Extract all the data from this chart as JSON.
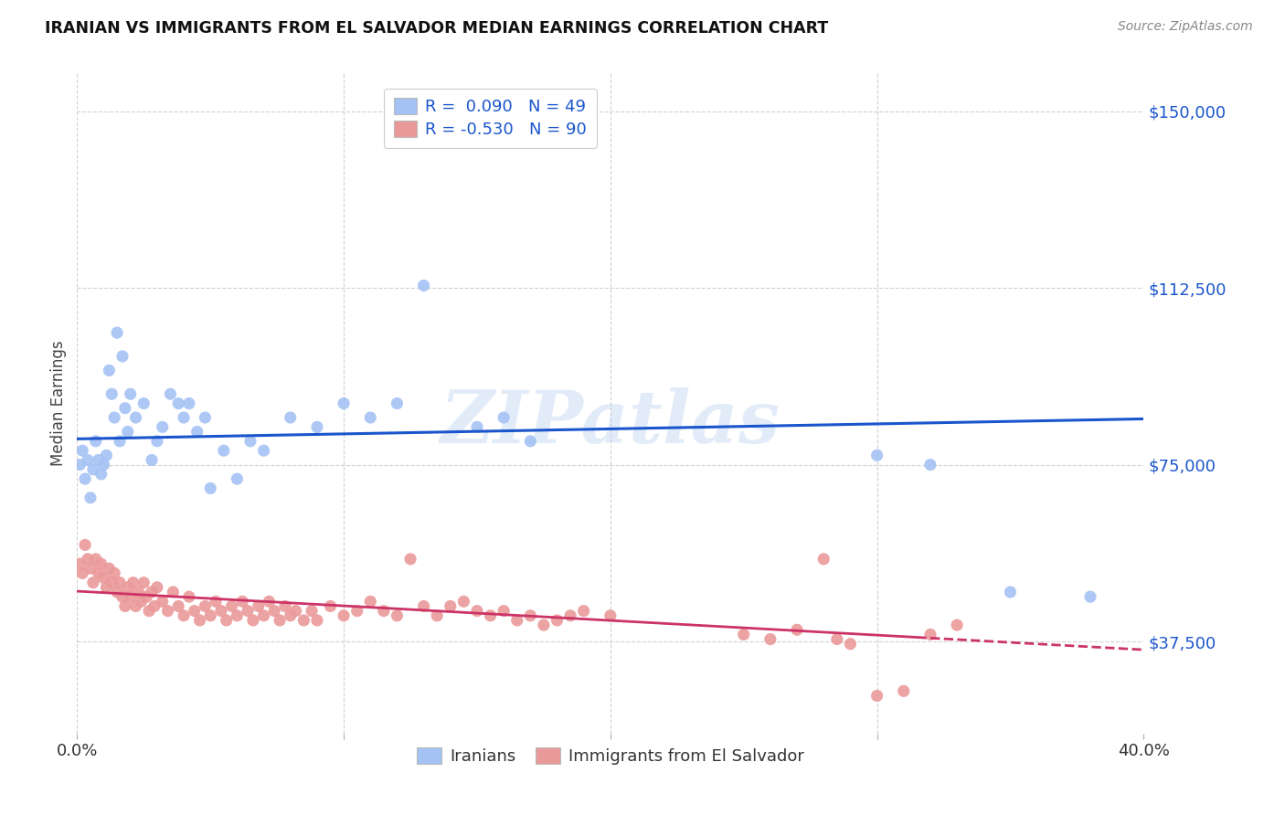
{
  "title": "IRANIAN VS IMMIGRANTS FROM EL SALVADOR MEDIAN EARNINGS CORRELATION CHART",
  "source": "Source: ZipAtlas.com",
  "ylabel": "Median Earnings",
  "xmin": 0.0,
  "xmax": 0.4,
  "ymin": 18000,
  "ymax": 158000,
  "blue_R": 0.09,
  "blue_N": 49,
  "pink_R": -0.53,
  "pink_N": 90,
  "blue_color": "#a4c2f4",
  "pink_color": "#ea9999",
  "blue_line_color": "#1a55cc",
  "pink_line_color": "#cc3366",
  "blue_scatter_x": [
    0.001,
    0.002,
    0.003,
    0.004,
    0.005,
    0.006,
    0.007,
    0.008,
    0.009,
    0.01,
    0.011,
    0.012,
    0.013,
    0.014,
    0.015,
    0.016,
    0.017,
    0.018,
    0.019,
    0.02,
    0.022,
    0.025,
    0.028,
    0.03,
    0.032,
    0.035,
    0.038,
    0.04,
    0.042,
    0.045,
    0.048,
    0.05,
    0.055,
    0.06,
    0.065,
    0.07,
    0.08,
    0.09,
    0.1,
    0.11,
    0.12,
    0.13,
    0.15,
    0.16,
    0.17,
    0.3,
    0.32,
    0.35,
    0.38
  ],
  "blue_scatter_y": [
    75000,
    78000,
    72000,
    76000,
    68000,
    74000,
    80000,
    76000,
    73000,
    75000,
    77000,
    95000,
    90000,
    85000,
    103000,
    80000,
    98000,
    87000,
    82000,
    90000,
    85000,
    88000,
    76000,
    80000,
    83000,
    90000,
    88000,
    85000,
    88000,
    82000,
    85000,
    70000,
    78000,
    72000,
    80000,
    78000,
    85000,
    83000,
    88000,
    85000,
    88000,
    113000,
    83000,
    85000,
    80000,
    77000,
    75000,
    48000,
    47000
  ],
  "pink_scatter_x": [
    0.001,
    0.002,
    0.003,
    0.004,
    0.005,
    0.006,
    0.007,
    0.008,
    0.009,
    0.01,
    0.011,
    0.012,
    0.013,
    0.014,
    0.015,
    0.016,
    0.017,
    0.018,
    0.019,
    0.02,
    0.021,
    0.022,
    0.023,
    0.024,
    0.025,
    0.026,
    0.027,
    0.028,
    0.029,
    0.03,
    0.032,
    0.034,
    0.036,
    0.038,
    0.04,
    0.042,
    0.044,
    0.046,
    0.048,
    0.05,
    0.052,
    0.054,
    0.056,
    0.058,
    0.06,
    0.062,
    0.064,
    0.066,
    0.068,
    0.07,
    0.072,
    0.074,
    0.076,
    0.078,
    0.08,
    0.082,
    0.085,
    0.088,
    0.09,
    0.095,
    0.1,
    0.105,
    0.11,
    0.115,
    0.12,
    0.125,
    0.13,
    0.135,
    0.14,
    0.145,
    0.15,
    0.155,
    0.16,
    0.165,
    0.17,
    0.175,
    0.18,
    0.185,
    0.19,
    0.2,
    0.25,
    0.26,
    0.27,
    0.28,
    0.285,
    0.29,
    0.3,
    0.31,
    0.32,
    0.33
  ],
  "pink_scatter_y": [
    54000,
    52000,
    58000,
    55000,
    53000,
    50000,
    55000,
    52000,
    54000,
    51000,
    49000,
    53000,
    50000,
    52000,
    48000,
    50000,
    47000,
    45000,
    49000,
    47000,
    50000,
    45000,
    48000,
    46000,
    50000,
    47000,
    44000,
    48000,
    45000,
    49000,
    46000,
    44000,
    48000,
    45000,
    43000,
    47000,
    44000,
    42000,
    45000,
    43000,
    46000,
    44000,
    42000,
    45000,
    43000,
    46000,
    44000,
    42000,
    45000,
    43000,
    46000,
    44000,
    42000,
    45000,
    43000,
    44000,
    42000,
    44000,
    42000,
    45000,
    43000,
    44000,
    46000,
    44000,
    43000,
    55000,
    45000,
    43000,
    45000,
    46000,
    44000,
    43000,
    44000,
    42000,
    43000,
    41000,
    42000,
    43000,
    44000,
    43000,
    39000,
    38000,
    40000,
    55000,
    38000,
    37000,
    26000,
    27000,
    39000,
    41000
  ],
  "watermark": "ZIPatlas",
  "background_color": "#ffffff",
  "grid_color": "#cccccc",
  "legend_label_blue": "Iranians",
  "legend_label_pink": "Immigrants from El Salvador",
  "yticks": [
    37500,
    75000,
    112500,
    150000
  ],
  "ytick_labels": [
    "$37,500",
    "$75,000",
    "$112,500",
    "$150,000"
  ]
}
